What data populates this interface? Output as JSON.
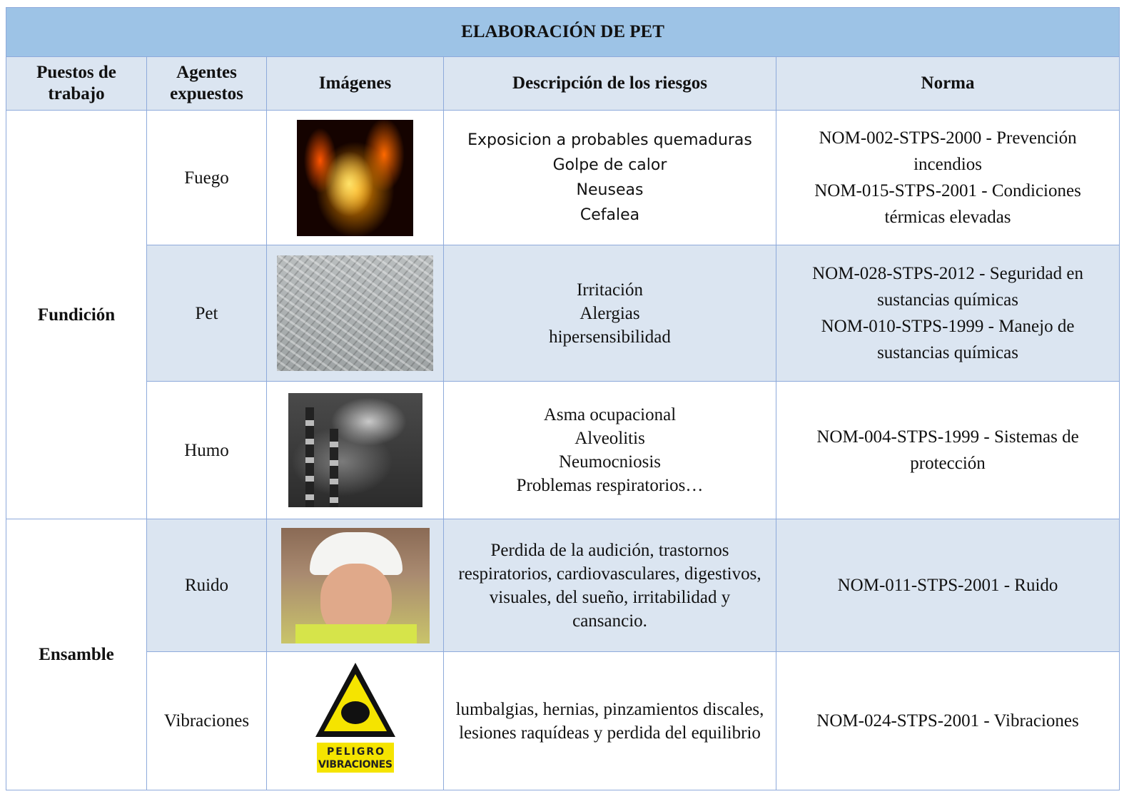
{
  "table": {
    "title": "ELABORACIÓN  DE PET",
    "headers": [
      "Puestos de trabajo",
      "Agentes expuestos",
      "Imágenes",
      "Descripción de los riesgos",
      "Norma"
    ],
    "groups": [
      {
        "puesto": "Fundición",
        "rows": [
          {
            "agente": "Fuego",
            "descripcion": [
              "Exposicion a probables quemaduras",
              "Golpe de calor",
              "Neuseas",
              "Cefalea"
            ],
            "norma": [
              "NOM-002-STPS-2000 - Prevención incendios",
              "NOM-015-STPS-2001 - Condiciones térmicas elevadas"
            ]
          },
          {
            "agente": "Pet",
            "descripcion": [
              "Irritación",
              "Alergias",
              "hipersensibilidad"
            ],
            "norma": [
              "NOM-028-STPS-2012 - Seguridad en sustancias químicas",
              "NOM-010-STPS-1999 - Manejo de sustancias químicas"
            ]
          },
          {
            "agente": "Humo",
            "descripcion": [
              "Asma ocupacional",
              "Alveolitis",
              "Neumocniosis",
              "Problemas respiratorios…"
            ],
            "norma": [
              "NOM-004-STPS-1999 - Sistemas de protección"
            ]
          }
        ]
      },
      {
        "puesto": "Ensamble",
        "rows": [
          {
            "agente": "Ruido",
            "descripcion": [
              "Perdida de la audición, trastornos respiratorios, cardiovasculares, digestivos, visuales, del sueño, irritabilidad y cansancio."
            ],
            "norma": [
              "NOM-011-STPS-2001 - Ruido"
            ]
          },
          {
            "agente": "Vibraciones",
            "descripcion": [
              "lumbalgias, hernias, pinzamientos discales, lesiones raquídeas y perdida del equilibrio"
            ],
            "norma": [
              "NOM-024-STPS-2001 - Vibraciones"
            ],
            "sign_text": [
              "PELIGRO",
              "VIBRACIONES"
            ]
          }
        ]
      }
    ]
  }
}
